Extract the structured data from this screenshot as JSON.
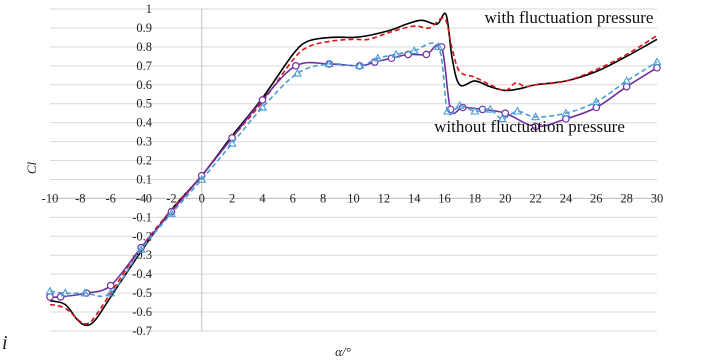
{
  "chart_data": {
    "type": "line",
    "title": "",
    "xlabel": "α/°",
    "ylabel": "Cl",
    "xlim": [
      -10,
      30
    ],
    "ylim": [
      -0.7,
      1
    ],
    "x_ticks": [
      "-10",
      "-8",
      "-6",
      "-4",
      "-2",
      "0",
      "2",
      "4",
      "6",
      "8",
      "10",
      "12",
      "14",
      "16",
      "18",
      "20",
      "22",
      "24",
      "26",
      "28",
      "30"
    ],
    "y_ticks": [
      "-0.7",
      "-0.6",
      "-0.5",
      "-0.4",
      "-0.3",
      "-0.2",
      "-0.1",
      "0",
      "0.1",
      "0.2",
      "0.3",
      "0.4",
      "0.5",
      "0.6",
      "0.7",
      "0.8",
      "0.9",
      "1"
    ],
    "grid": "horizontal",
    "annotations": [
      {
        "text": "with fluctuation pressure",
        "x": 24.2,
        "y": 0.925
      },
      {
        "text": "without fluctuation pressure",
        "x": 21.6,
        "y": 0.35
      }
    ],
    "stray_glyph": "i",
    "series": [
      {
        "style": "solid-black",
        "color": "#000000",
        "points": [
          [
            -10,
            -0.54
          ],
          [
            -9,
            -0.56
          ],
          [
            -8.2,
            -0.64
          ],
          [
            -7.6,
            -0.67
          ],
          [
            -7,
            -0.64
          ],
          [
            -6,
            -0.52
          ],
          [
            -4,
            -0.28
          ],
          [
            -2,
            -0.06
          ],
          [
            0,
            0.12
          ],
          [
            2,
            0.33
          ],
          [
            4,
            0.53
          ],
          [
            6,
            0.76
          ],
          [
            7,
            0.83
          ],
          [
            8.5,
            0.85
          ],
          [
            10,
            0.85
          ],
          [
            11,
            0.86
          ],
          [
            12.5,
            0.89
          ],
          [
            13.5,
            0.92
          ],
          [
            14.5,
            0.94
          ],
          [
            15.5,
            0.92
          ],
          [
            16.1,
            0.97
          ],
          [
            16.5,
            0.74
          ],
          [
            17,
            0.6
          ],
          [
            18,
            0.62
          ],
          [
            19,
            0.59
          ],
          [
            20,
            0.57
          ],
          [
            21,
            0.58
          ],
          [
            22,
            0.6
          ],
          [
            24,
            0.62
          ],
          [
            26,
            0.67
          ],
          [
            28,
            0.75
          ],
          [
            30,
            0.84
          ]
        ]
      },
      {
        "style": "dashed-red",
        "color": "#d8141a",
        "points": [
          [
            -10,
            -0.56
          ],
          [
            -9,
            -0.58
          ],
          [
            -8,
            -0.65
          ],
          [
            -7.5,
            -0.66
          ],
          [
            -7,
            -0.62
          ],
          [
            -6,
            -0.5
          ],
          [
            -4,
            -0.26
          ],
          [
            -2,
            -0.06
          ],
          [
            0,
            0.12
          ],
          [
            2,
            0.32
          ],
          [
            4,
            0.51
          ],
          [
            6,
            0.73
          ],
          [
            7,
            0.8
          ],
          [
            8.5,
            0.83
          ],
          [
            10,
            0.84
          ],
          [
            11,
            0.84
          ],
          [
            12.5,
            0.88
          ],
          [
            14,
            0.91
          ],
          [
            15,
            0.9
          ],
          [
            16,
            0.95
          ],
          [
            16.5,
            0.79
          ],
          [
            17,
            0.67
          ],
          [
            18,
            0.64
          ],
          [
            19,
            0.6
          ],
          [
            20,
            0.57
          ],
          [
            20.7,
            0.61
          ],
          [
            21.3,
            0.59
          ],
          [
            22,
            0.6
          ],
          [
            24,
            0.62
          ],
          [
            26,
            0.68
          ],
          [
            28,
            0.76
          ],
          [
            30,
            0.86
          ]
        ]
      },
      {
        "style": "solid-purple-circle",
        "color": "#7030a0",
        "points": [
          [
            -10,
            -0.52
          ],
          [
            -9.3,
            -0.52
          ],
          [
            -7.6,
            -0.5
          ],
          [
            -6,
            -0.46
          ],
          [
            -4,
            -0.26
          ],
          [
            -2,
            -0.07
          ],
          [
            0,
            0.12
          ],
          [
            2,
            0.32
          ],
          [
            4,
            0.52
          ],
          [
            6.2,
            0.7
          ],
          [
            8.4,
            0.71
          ],
          [
            10.4,
            0.7
          ],
          [
            11.4,
            0.72
          ],
          [
            12.5,
            0.74
          ],
          [
            13.6,
            0.76
          ],
          [
            14.8,
            0.76
          ],
          [
            15.8,
            0.8
          ],
          [
            16.4,
            0.47
          ],
          [
            17.2,
            0.48
          ],
          [
            18.5,
            0.47
          ],
          [
            20,
            0.45
          ],
          [
            22,
            0.38
          ],
          [
            24,
            0.42
          ],
          [
            26,
            0.48
          ],
          [
            28,
            0.59
          ],
          [
            30,
            0.69
          ]
        ]
      },
      {
        "style": "dashed-blue-triangle",
        "color": "#4a9dd6",
        "points": [
          [
            -10,
            -0.49
          ],
          [
            -9,
            -0.5
          ],
          [
            -7.7,
            -0.5
          ],
          [
            -6,
            -0.5
          ],
          [
            -4,
            -0.27
          ],
          [
            -2,
            -0.08
          ],
          [
            0,
            0.1
          ],
          [
            2,
            0.29
          ],
          [
            4,
            0.48
          ],
          [
            6.3,
            0.66
          ],
          [
            8.4,
            0.71
          ],
          [
            10.4,
            0.7
          ],
          [
            11.6,
            0.74
          ],
          [
            12.8,
            0.76
          ],
          [
            14,
            0.78
          ],
          [
            15.6,
            0.8
          ],
          [
            16.2,
            0.46
          ],
          [
            17,
            0.49
          ],
          [
            18,
            0.46
          ],
          [
            19,
            0.47
          ],
          [
            19.8,
            0.42
          ],
          [
            20.8,
            0.46
          ],
          [
            22,
            0.43
          ],
          [
            24,
            0.45
          ],
          [
            26,
            0.51
          ],
          [
            28,
            0.62
          ],
          [
            30,
            0.72
          ]
        ]
      }
    ]
  }
}
